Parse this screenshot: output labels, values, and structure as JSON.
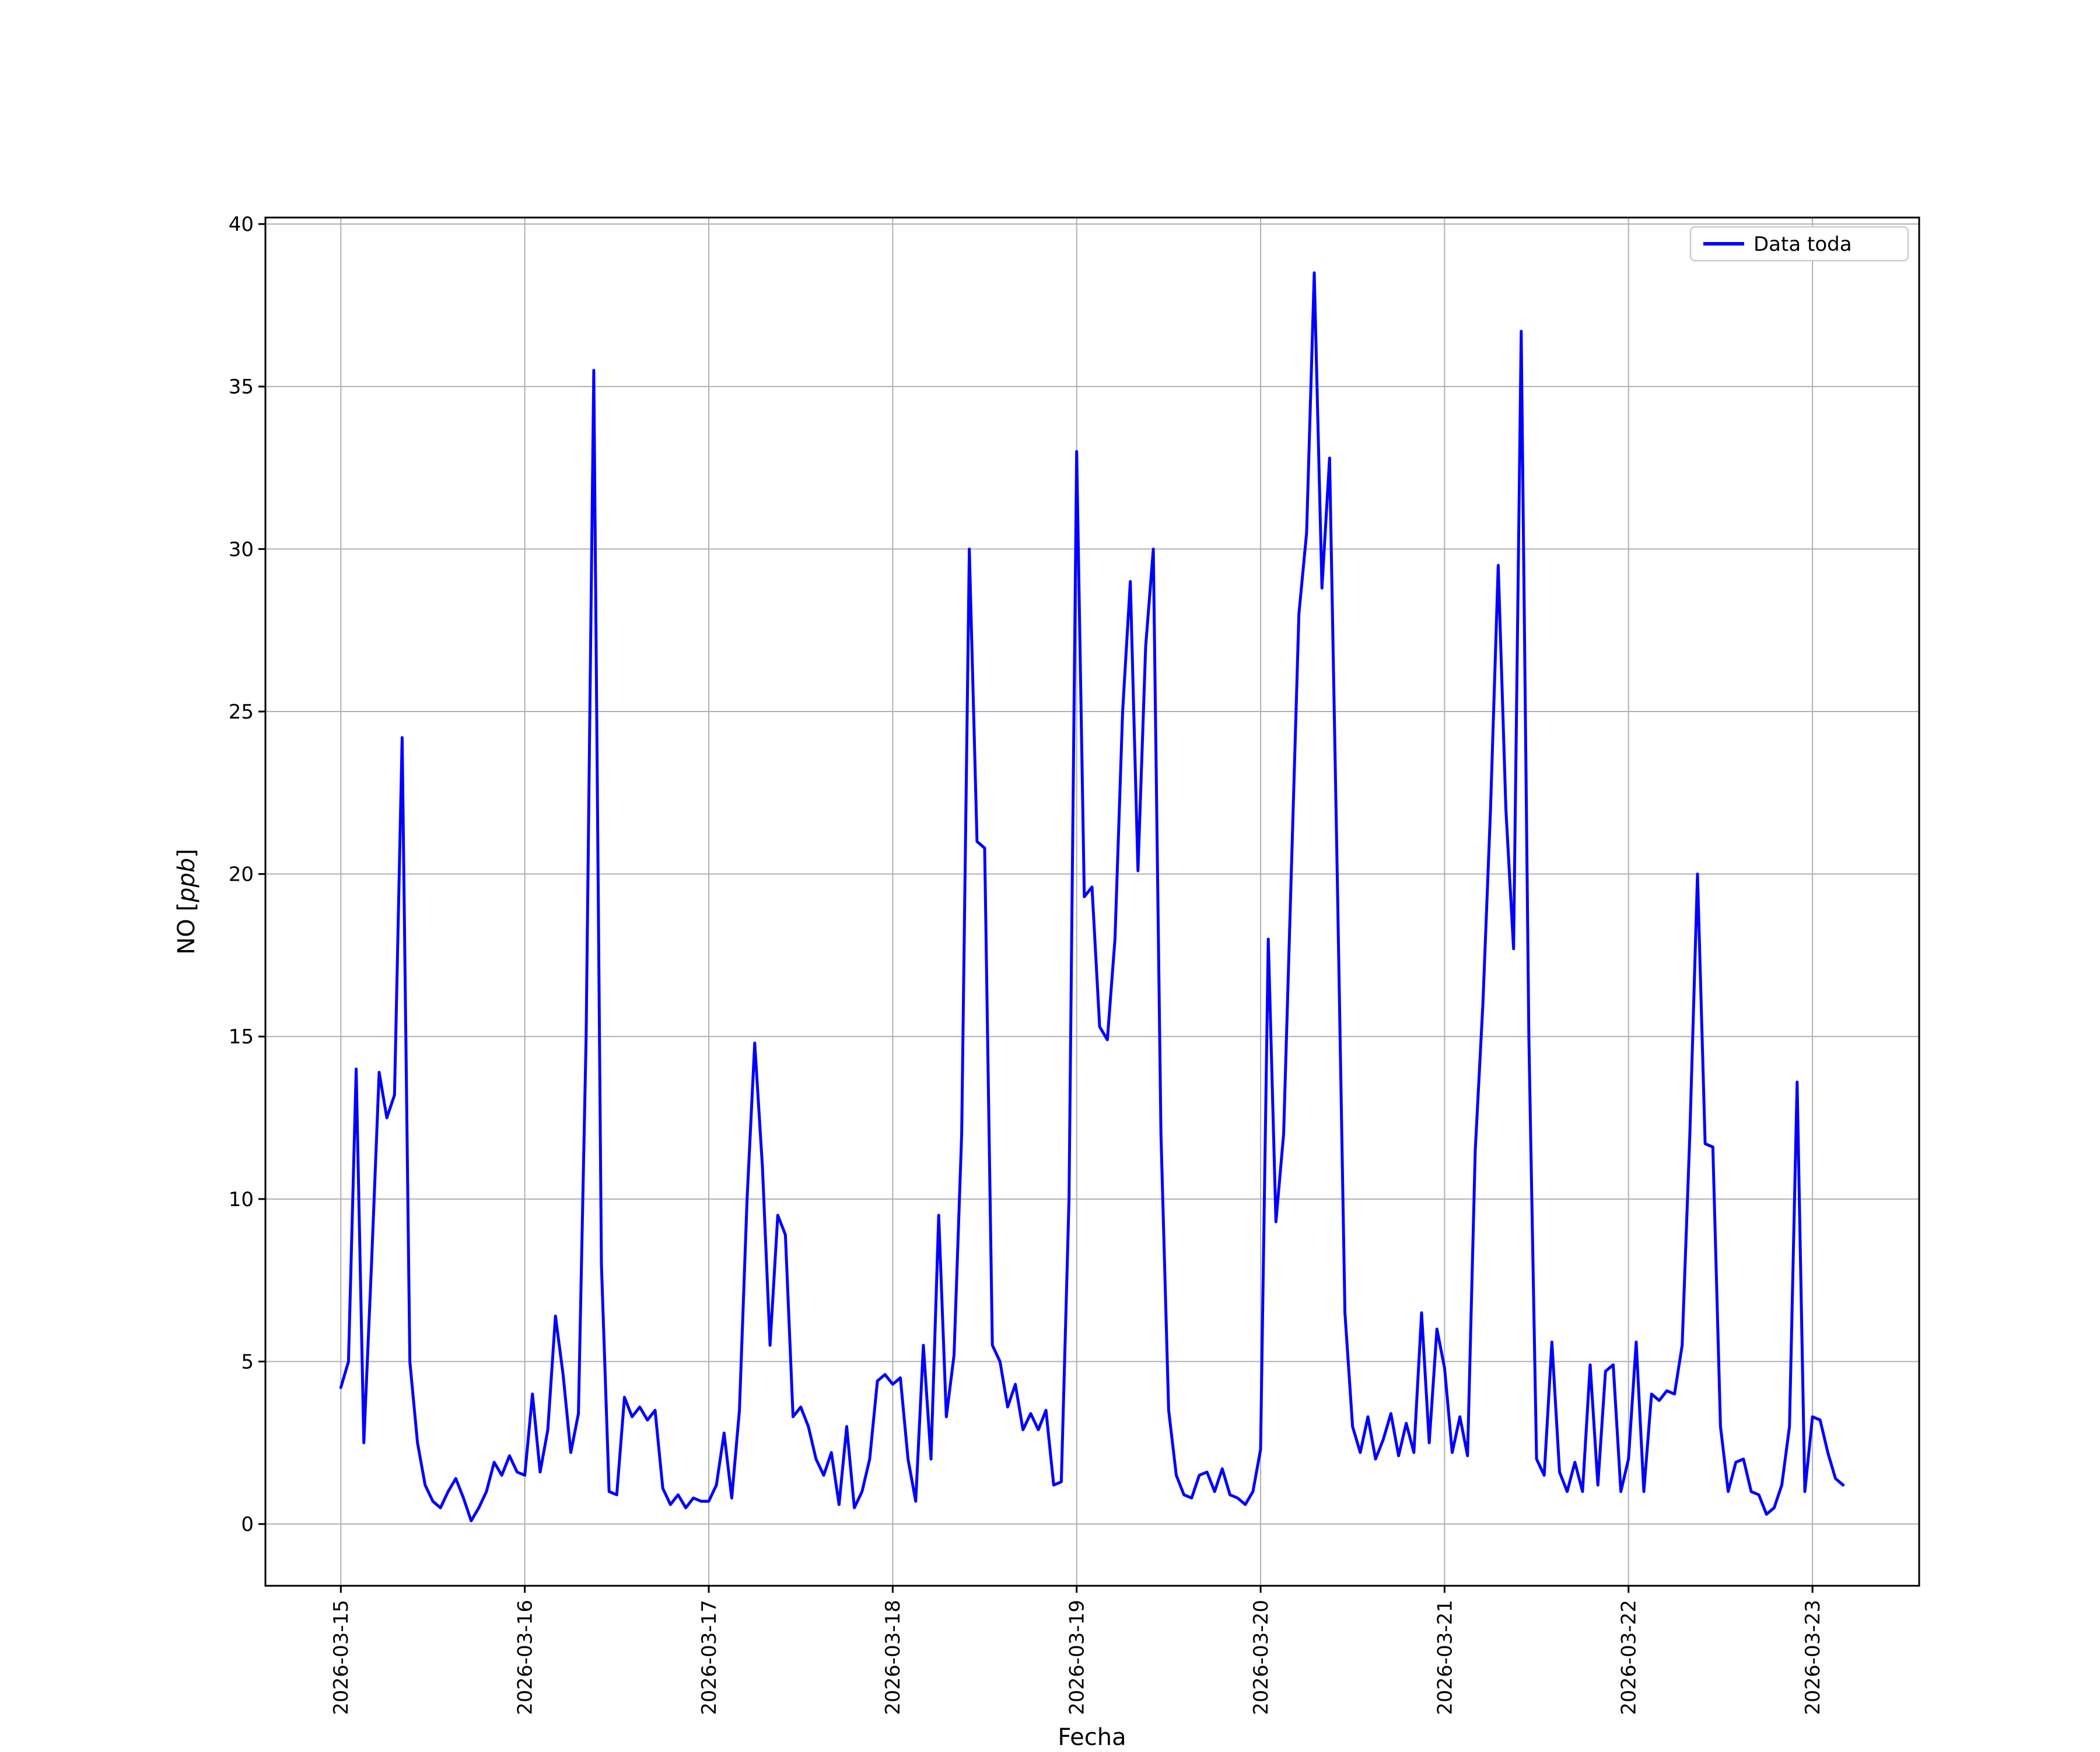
{
  "chart_data": {
    "type": "line",
    "title": "",
    "xlabel": "Fecha",
    "ylabel": "NO [ppb]",
    "ylabel_parts": {
      "prefix": "NO [",
      "italic": "ppb",
      "suffix": "]"
    },
    "legend": {
      "label": "Data toda",
      "position": "upper right"
    },
    "grid": true,
    "grid_color": "#b0b0b0",
    "line_color": "#0000ff",
    "spine_color": "#000000",
    "x_tick_labels": [
      "2026-03-15",
      "2026-03-16",
      "2026-03-17",
      "2026-03-18",
      "2026-03-19",
      "2026-03-20",
      "2026-03-21",
      "2026-03-22",
      "2026-03-23"
    ],
    "y_ticks": [
      0,
      5,
      10,
      15,
      20,
      25,
      30,
      35,
      40
    ],
    "y_tick_labels": [
      "0",
      "5",
      "10",
      "15",
      "20",
      "25",
      "30",
      "35",
      "40"
    ],
    "xlim_days": [
      -0.41,
      8.58
    ],
    "ylim": [
      -1.9,
      40.2
    ],
    "points_per_day": 24,
    "x_start_label": "2026-03-15",
    "series": [
      {
        "name": "Data toda",
        "color": "#0000ff",
        "values": [
          4.2,
          5.0,
          14.0,
          2.5,
          8.0,
          13.9,
          12.5,
          13.2,
          24.2,
          5.0,
          2.5,
          1.2,
          0.7,
          0.5,
          1.0,
          1.4,
          0.8,
          0.1,
          0.5,
          1.0,
          1.9,
          1.5,
          2.1,
          1.6,
          1.5,
          4.0,
          1.6,
          2.9,
          6.4,
          4.6,
          2.2,
          3.4,
          15.0,
          35.5,
          8.0,
          1.0,
          0.9,
          3.9,
          3.3,
          3.6,
          3.2,
          3.5,
          1.1,
          0.6,
          0.9,
          0.5,
          0.8,
          0.7,
          0.7,
          1.2,
          2.8,
          0.8,
          3.5,
          10.0,
          14.8,
          11.0,
          5.5,
          9.5,
          8.9,
          3.3,
          3.6,
          3.0,
          2.0,
          1.5,
          2.2,
          0.6,
          3.0,
          0.5,
          1.0,
          2.0,
          4.4,
          4.6,
          4.3,
          4.5,
          2.0,
          0.7,
          5.5,
          2.0,
          9.5,
          3.3,
          5.2,
          12.0,
          30.0,
          21.0,
          20.8,
          5.5,
          5.0,
          3.6,
          4.3,
          2.9,
          3.4,
          2.9,
          3.5,
          1.2,
          1.3,
          10.0,
          33.0,
          19.3,
          19.6,
          15.3,
          14.9,
          18.0,
          25.0,
          29.0,
          20.1,
          27.0,
          30.0,
          12.0,
          3.5,
          1.5,
          0.9,
          0.8,
          1.5,
          1.6,
          1.0,
          1.7,
          0.9,
          0.8,
          0.6,
          1.0,
          2.3,
          18.0,
          9.3,
          12.0,
          20.0,
          28.0,
          30.5,
          38.5,
          28.8,
          32.8,
          20.0,
          6.5,
          3.0,
          2.2,
          3.3,
          2.0,
          2.6,
          3.4,
          2.1,
          3.1,
          2.2,
          6.5,
          2.5,
          6.0,
          4.8,
          2.2,
          3.3,
          2.1,
          11.5,
          16.0,
          22.0,
          29.5,
          22.0,
          17.7,
          36.7,
          15.0,
          2.0,
          1.5,
          5.6,
          1.6,
          1.0,
          1.9,
          1.0,
          4.9,
          1.2,
          4.7,
          4.9,
          1.0,
          2.0,
          5.6,
          1.0,
          4.0,
          3.8,
          4.1,
          4.0,
          5.5,
          12.0,
          20.0,
          11.7,
          11.6,
          3.0,
          1.0,
          1.9,
          2.0,
          1.0,
          0.9,
          0.3,
          0.5,
          1.2,
          3.0,
          13.6,
          1.0,
          3.3,
          3.2,
          2.2,
          1.4,
          1.2
        ]
      }
    ]
  }
}
